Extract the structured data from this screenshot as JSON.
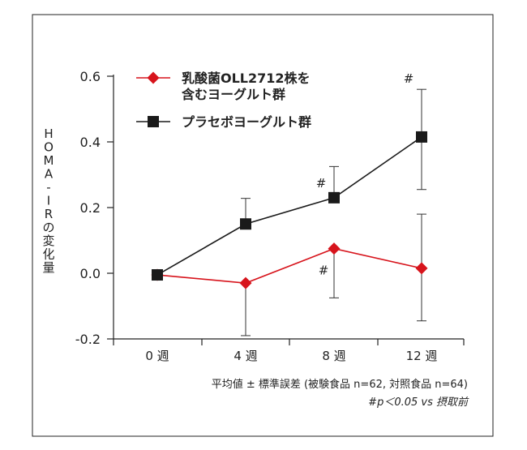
{
  "chart_data": {
    "type": "line",
    "ylabel": "HOMA-IRの変化量",
    "categories": [
      "0 週",
      "4 週",
      "8 週",
      "12 週"
    ],
    "x": [
      0,
      4,
      8,
      12
    ],
    "ylim": [
      -0.2,
      0.6
    ],
    "yticks": [
      "-0.2",
      "0.0",
      "0.2",
      "0.4",
      "0.6"
    ],
    "grid": false,
    "legend_position": "top-left",
    "series": [
      {
        "name": "乳酸菌OLL2712株を含むヨーグルト群",
        "legend_lines": [
          "乳酸菌OLL2712株を",
          "含むヨーグルト群"
        ],
        "color": "#d7141c",
        "marker": "diamond",
        "values": [
          -0.005,
          -0.03,
          0.075,
          0.015
        ],
        "err_low": [
          null,
          -0.19,
          -0.075,
          -0.145
        ],
        "err_high": [
          null,
          null,
          null,
          0.18
        ],
        "annotations": [
          "",
          "",
          "#",
          ""
        ]
      },
      {
        "name": "プラセボヨーグルト群",
        "legend_lines": [
          "プラセボヨーグルト群"
        ],
        "color": "#1a1a1a",
        "marker": "square",
        "values": [
          -0.005,
          0.15,
          0.23,
          0.415
        ],
        "err_low": [
          null,
          null,
          null,
          0.255
        ],
        "err_high": [
          null,
          0.228,
          0.325,
          0.56
        ],
        "annotations": [
          "",
          "",
          "#",
          "#"
        ]
      }
    ],
    "footnotes": [
      "平均値 ± 標準誤差 (被験食品 n=62, 対照食品 n=64)",
      "#p＜0.05 vs 摂取前"
    ]
  }
}
